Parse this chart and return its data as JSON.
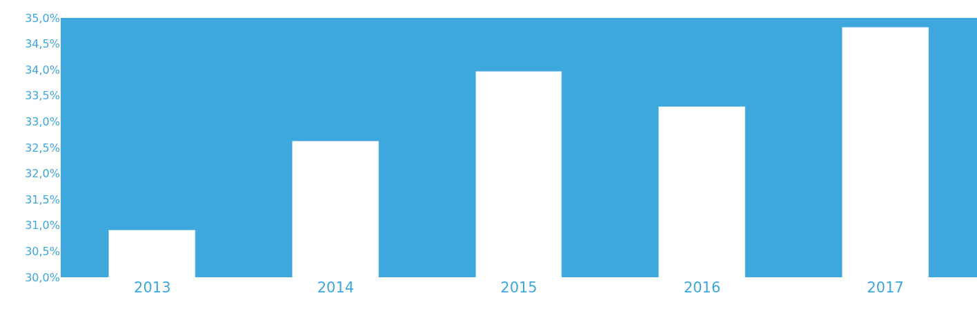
{
  "chart_data": {
    "type": "bar",
    "categories": [
      "2013",
      "2014",
      "2015",
      "2016",
      "2017"
    ],
    "values": [
      30.91,
      32.62,
      33.96,
      33.29,
      34.82
    ],
    "color": "#ffffff",
    "ylim": [
      30,
      35
    ],
    "yticks": [
      {
        "value": 30,
        "label": "30,0%"
      },
      {
        "value": 30.5,
        "label": "30,5%"
      },
      {
        "value": 31,
        "label": "31,0%"
      },
      {
        "value": 31.5,
        "label": "31,5%"
      },
      {
        "value": 32,
        "label": "32,0%"
      },
      {
        "value": 32.5,
        "label": "32,5%"
      },
      {
        "value": 33,
        "label": "33,0%"
      },
      {
        "value": 33.5,
        "label": "33,5%"
      },
      {
        "value": 34,
        "label": "34,0%"
      },
      {
        "value": 34.5,
        "label": "34,5%"
      },
      {
        "value": 35,
        "label": "35,0%"
      }
    ]
  }
}
